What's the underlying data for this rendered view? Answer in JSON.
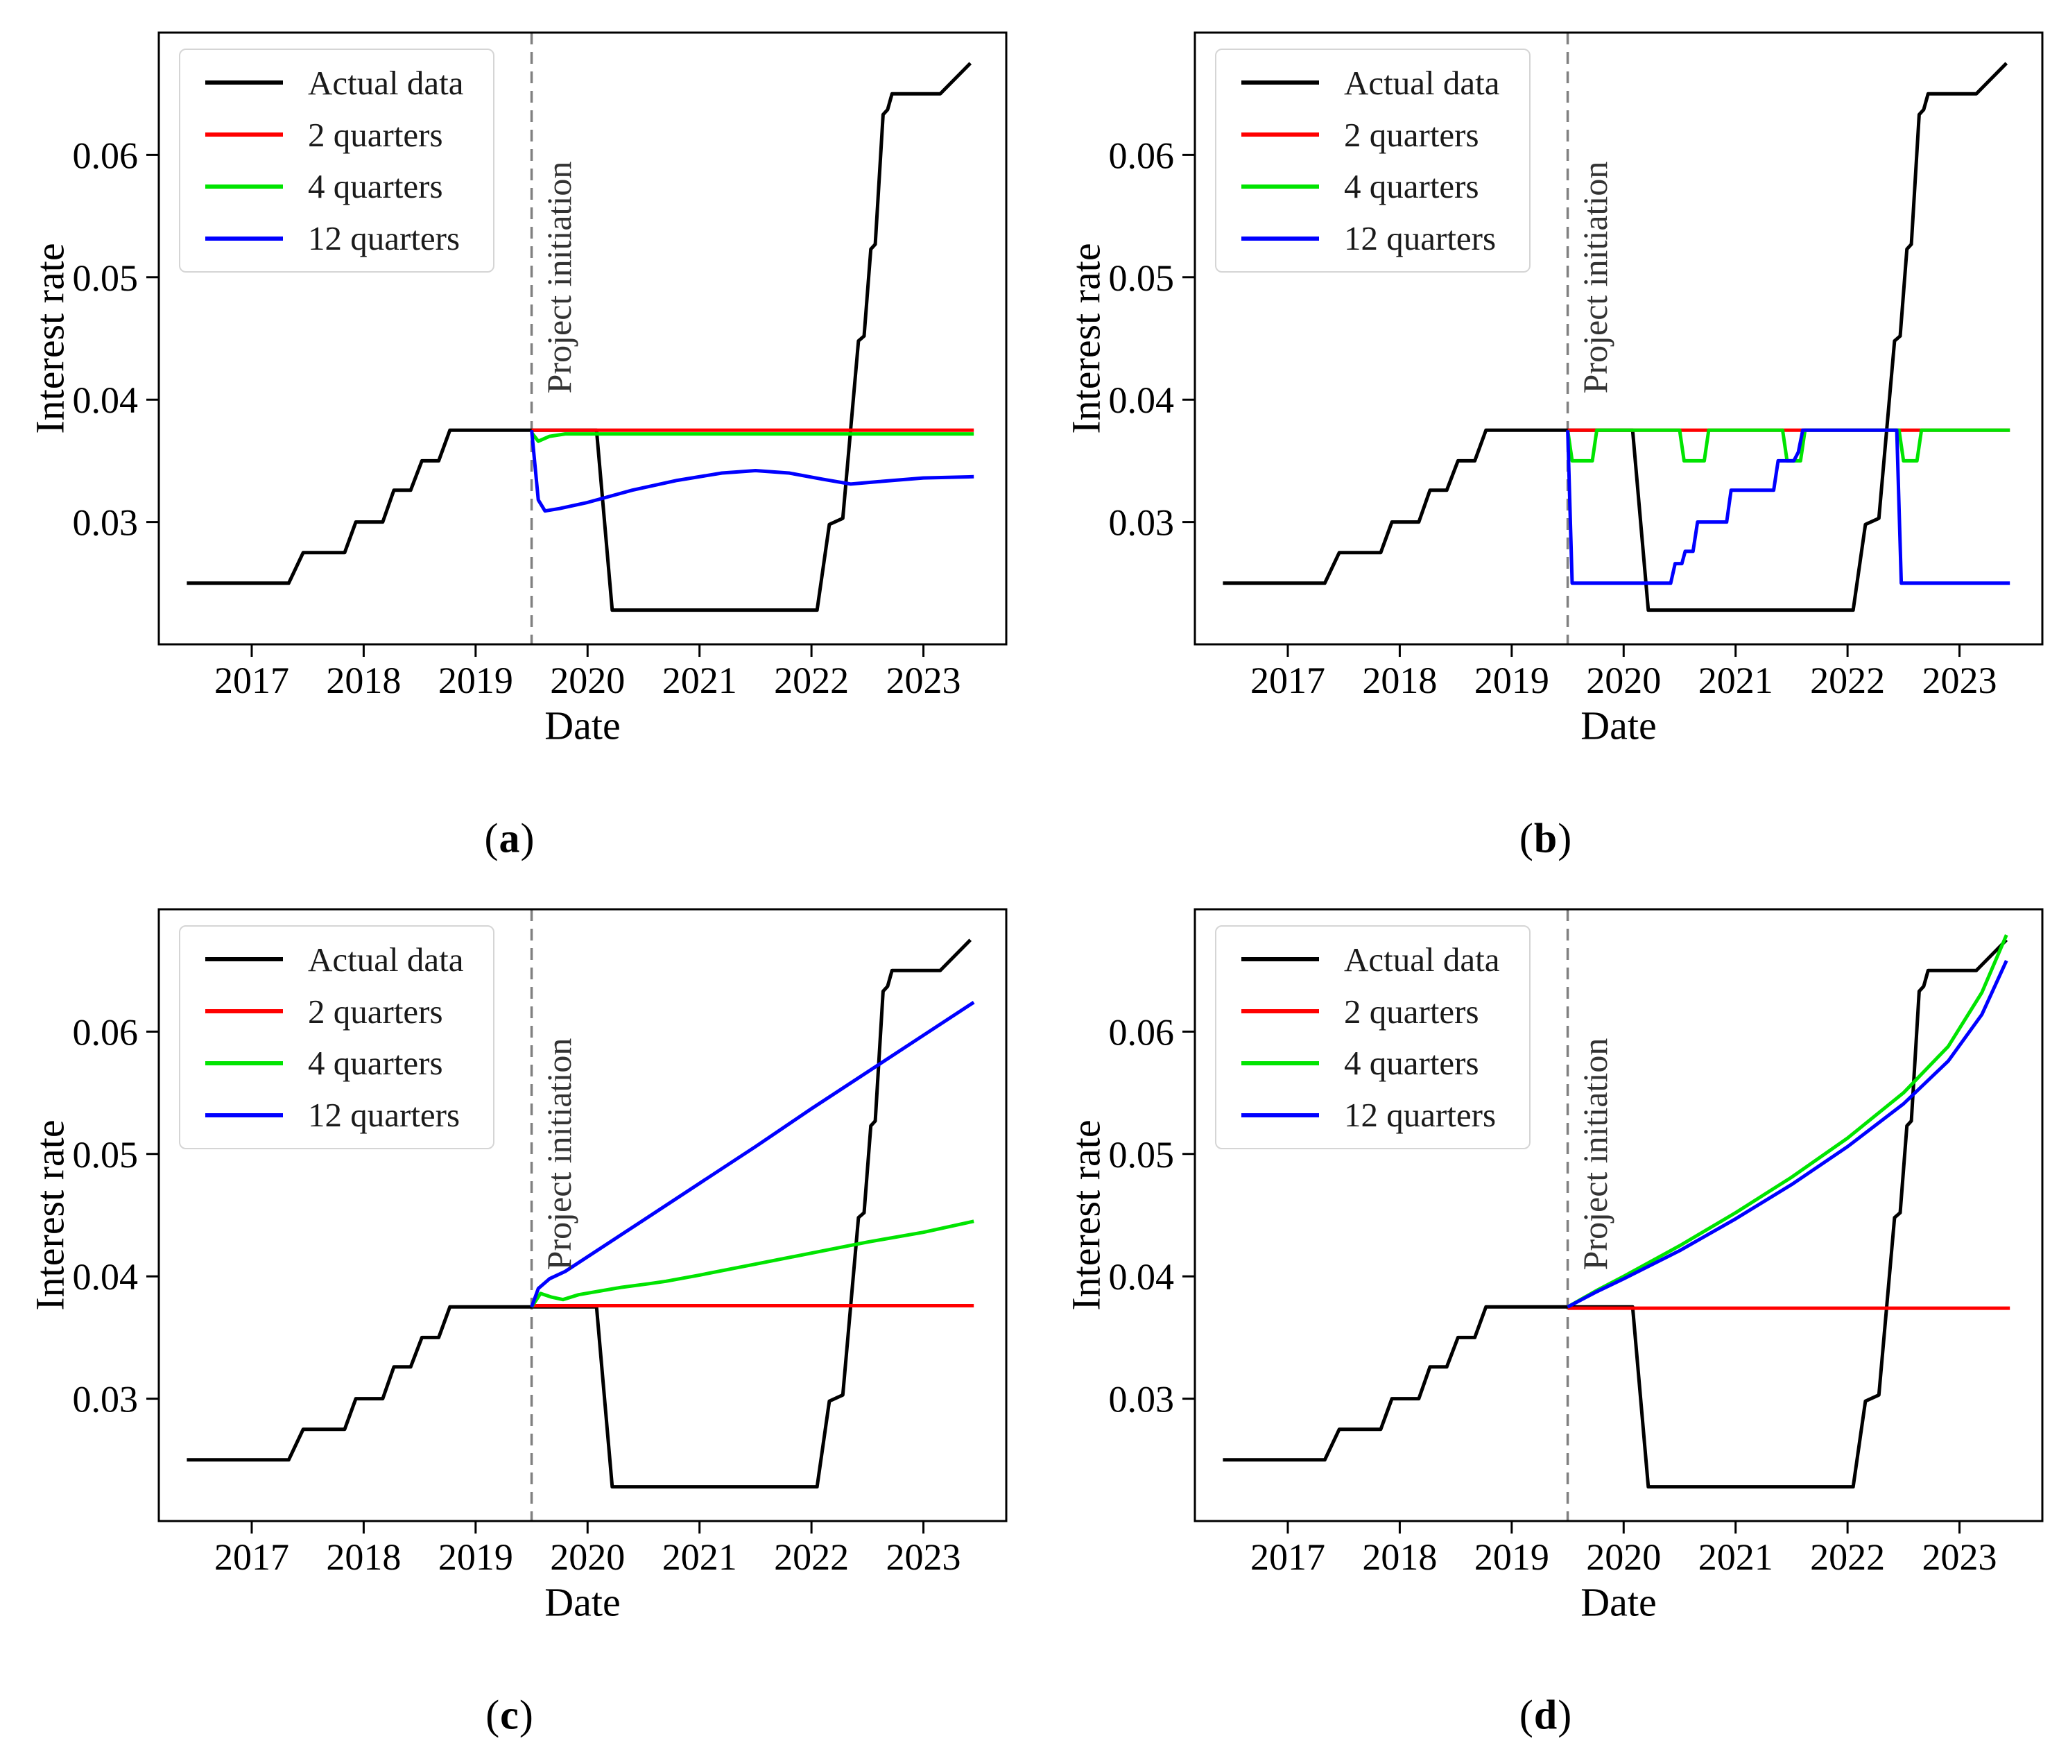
{
  "figure": {
    "ylabel": "Interest rate",
    "xlabel": "Date",
    "legend": [
      "Actual data",
      "2 quarters",
      "4 quarters",
      "12 quarters"
    ],
    "legend_colors": [
      "#000000",
      "#ff0000",
      "#00e400",
      "#0000ff"
    ],
    "annotation": "Project initiation",
    "caption_open": "(",
    "caption_close": ")",
    "captions": [
      "a",
      "b",
      "c",
      "d"
    ],
    "colors": {
      "actual": "#000000",
      "two_quarters": "#ff0000",
      "four_quarters": "#00e400",
      "twelve_quarters": "#0000ff",
      "dashed_line": "#808080",
      "frame": "#000000"
    }
  },
  "shared_series": {
    "actual_data": [
      [
        2016.42,
        0.025
      ],
      [
        2017.33,
        0.025
      ],
      [
        2017.46,
        0.0275
      ],
      [
        2017.83,
        0.0275
      ],
      [
        2017.93,
        0.03
      ],
      [
        2018.17,
        0.03
      ],
      [
        2018.27,
        0.0326
      ],
      [
        2018.42,
        0.0326
      ],
      [
        2018.52,
        0.035
      ],
      [
        2018.67,
        0.035
      ],
      [
        2018.77,
        0.0375
      ],
      [
        2020.08,
        0.0375
      ],
      [
        2020.22,
        0.0228
      ],
      [
        2022.05,
        0.0228
      ],
      [
        2022.16,
        0.0298
      ],
      [
        2022.28,
        0.0303
      ],
      [
        2022.42,
        0.0448
      ],
      [
        2022.47,
        0.0452
      ],
      [
        2022.53,
        0.0523
      ],
      [
        2022.57,
        0.0527
      ],
      [
        2022.64,
        0.0633
      ],
      [
        2022.68,
        0.0637
      ],
      [
        2022.72,
        0.065
      ],
      [
        2023.15,
        0.065
      ],
      [
        2023.42,
        0.0675
      ]
    ]
  },
  "chart_data": [
    {
      "id": "a",
      "type": "line",
      "caption": "a",
      "xlabel": "Date",
      "ylabel": "Interest rate",
      "xlim": [
        2016.17,
        2023.74
      ],
      "ylim": [
        0.02,
        0.07
      ],
      "x_ticks": [
        2017,
        2018,
        2019,
        2020,
        2021,
        2022,
        2023
      ],
      "x_tick_labels": [
        "2017",
        "2018",
        "2019",
        "2020",
        "2021",
        "2022",
        "2023"
      ],
      "y_ticks": [
        0.03,
        0.04,
        0.05,
        0.06
      ],
      "y_tick_labels": [
        "0.03",
        "0.04",
        "0.05",
        "0.06"
      ],
      "annotation_x": 2019.5,
      "annotation_label": "Project initiation",
      "legend_position": "upper-left",
      "grid": false,
      "series": [
        {
          "name": "Actual data",
          "color": "#000000",
          "points": "@actual_data"
        },
        {
          "name": "2 quarters",
          "color": "#ff0000",
          "points": [
            [
              2019.5,
              0.0375
            ],
            [
              2023.45,
              0.0375
            ]
          ]
        },
        {
          "name": "4 quarters",
          "color": "#00e400",
          "points": [
            [
              2019.5,
              0.0373
            ],
            [
              2019.56,
              0.0366
            ],
            [
              2019.66,
              0.037
            ],
            [
              2019.8,
              0.0372
            ],
            [
              2023.45,
              0.0372
            ]
          ]
        },
        {
          "name": "12 quarters",
          "color": "#0000ff",
          "points": [
            [
              2019.5,
              0.0375
            ],
            [
              2019.56,
              0.0318
            ],
            [
              2019.62,
              0.0309
            ],
            [
              2019.75,
              0.0311
            ],
            [
              2020.0,
              0.0316
            ],
            [
              2020.4,
              0.0326
            ],
            [
              2020.8,
              0.0334
            ],
            [
              2021.2,
              0.034
            ],
            [
              2021.5,
              0.0342
            ],
            [
              2021.8,
              0.034
            ],
            [
              2022.1,
              0.0335
            ],
            [
              2022.35,
              0.0331
            ],
            [
              2022.6,
              0.0333
            ],
            [
              2023.0,
              0.0336
            ],
            [
              2023.45,
              0.0337
            ]
          ]
        }
      ]
    },
    {
      "id": "b",
      "type": "line",
      "caption": "b",
      "xlabel": "Date",
      "ylabel": "Interest rate",
      "xlim": [
        2016.17,
        2023.74
      ],
      "ylim": [
        0.02,
        0.07
      ],
      "x_ticks": [
        2017,
        2018,
        2019,
        2020,
        2021,
        2022,
        2023
      ],
      "x_tick_labels": [
        "2017",
        "2018",
        "2019",
        "2020",
        "2021",
        "2022",
        "2023"
      ],
      "y_ticks": [
        0.03,
        0.04,
        0.05,
        0.06
      ],
      "y_tick_labels": [
        "0.03",
        "0.04",
        "0.05",
        "0.06"
      ],
      "annotation_x": 2019.5,
      "annotation_label": "Project initiation",
      "legend_position": "upper-left",
      "grid": false,
      "series": [
        {
          "name": "Actual data",
          "color": "#000000",
          "points": "@actual_data"
        },
        {
          "name": "2 quarters",
          "color": "#ff0000",
          "points": [
            [
              2019.5,
              0.0375
            ],
            [
              2023.45,
              0.0375
            ]
          ]
        },
        {
          "name": "4 quarters",
          "color": "#00e400",
          "points": [
            [
              2019.5,
              0.0375
            ],
            [
              2019.54,
              0.035
            ],
            [
              2019.72,
              0.035
            ],
            [
              2019.76,
              0.0375
            ],
            [
              2020.5,
              0.0375
            ],
            [
              2020.54,
              0.035
            ],
            [
              2020.72,
              0.035
            ],
            [
              2020.76,
              0.0375
            ],
            [
              2021.42,
              0.0375
            ],
            [
              2021.46,
              0.035
            ],
            [
              2021.58,
              0.035
            ],
            [
              2021.62,
              0.0375
            ],
            [
              2022.46,
              0.0375
            ],
            [
              2022.5,
              0.035
            ],
            [
              2022.62,
              0.035
            ],
            [
              2022.66,
              0.0375
            ],
            [
              2023.45,
              0.0375
            ]
          ]
        },
        {
          "name": "12 quarters",
          "color": "#0000ff",
          "points": [
            [
              2019.5,
              0.0375
            ],
            [
              2019.54,
              0.025
            ],
            [
              2020.42,
              0.025
            ],
            [
              2020.46,
              0.0266
            ],
            [
              2020.52,
              0.0266
            ],
            [
              2020.55,
              0.0276
            ],
            [
              2020.62,
              0.0276
            ],
            [
              2020.66,
              0.03
            ],
            [
              2020.92,
              0.03
            ],
            [
              2020.96,
              0.0326
            ],
            [
              2021.34,
              0.0326
            ],
            [
              2021.38,
              0.035
            ],
            [
              2021.52,
              0.035
            ],
            [
              2021.56,
              0.0357
            ],
            [
              2021.6,
              0.0375
            ],
            [
              2022.44,
              0.0375
            ],
            [
              2022.48,
              0.025
            ],
            [
              2023.45,
              0.025
            ]
          ]
        }
      ]
    },
    {
      "id": "c",
      "type": "line",
      "caption": "c",
      "xlabel": "Date",
      "ylabel": "Interest rate",
      "xlim": [
        2016.17,
        2023.74
      ],
      "ylim": [
        0.02,
        0.07
      ],
      "x_ticks": [
        2017,
        2018,
        2019,
        2020,
        2021,
        2022,
        2023
      ],
      "x_tick_labels": [
        "2017",
        "2018",
        "2019",
        "2020",
        "2021",
        "2022",
        "2023"
      ],
      "y_ticks": [
        0.03,
        0.04,
        0.05,
        0.06
      ],
      "y_tick_labels": [
        "0.03",
        "0.04",
        "0.05",
        "0.06"
      ],
      "annotation_x": 2019.5,
      "annotation_label": "Project initiation",
      "legend_position": "upper-left",
      "grid": false,
      "series": [
        {
          "name": "Actual data",
          "color": "#000000",
          "points": "@actual_data"
        },
        {
          "name": "2 quarters",
          "color": "#ff0000",
          "points": [
            [
              2019.5,
              0.0376
            ],
            [
              2023.45,
              0.0376
            ]
          ]
        },
        {
          "name": "4 quarters",
          "color": "#00e400",
          "points": [
            [
              2019.5,
              0.0375
            ],
            [
              2019.58,
              0.0386
            ],
            [
              2019.68,
              0.0383
            ],
            [
              2019.78,
              0.0381
            ],
            [
              2019.92,
              0.0385
            ],
            [
              2020.3,
              0.0391
            ],
            [
              2020.55,
              0.0394
            ],
            [
              2020.7,
              0.0396
            ],
            [
              2021.0,
              0.0401
            ],
            [
              2021.5,
              0.041
            ],
            [
              2022.0,
              0.0419
            ],
            [
              2022.5,
              0.0428
            ],
            [
              2023.0,
              0.0436
            ],
            [
              2023.45,
              0.0445
            ]
          ]
        },
        {
          "name": "12 quarters",
          "color": "#0000ff",
          "points": [
            [
              2019.5,
              0.0375
            ],
            [
              2019.56,
              0.039
            ],
            [
              2019.66,
              0.0398
            ],
            [
              2019.8,
              0.0404
            ],
            [
              2020.5,
              0.0446
            ],
            [
              2021.0,
              0.0476
            ],
            [
              2021.5,
              0.0506
            ],
            [
              2022.0,
              0.0537
            ],
            [
              2022.5,
              0.0567
            ],
            [
              2023.0,
              0.0597
            ],
            [
              2023.45,
              0.0624
            ]
          ]
        }
      ]
    },
    {
      "id": "d",
      "type": "line",
      "caption": "d",
      "xlabel": "Date",
      "ylabel": "Interest rate",
      "xlim": [
        2016.17,
        2023.74
      ],
      "ylim": [
        0.02,
        0.07
      ],
      "x_ticks": [
        2017,
        2018,
        2019,
        2020,
        2021,
        2022,
        2023
      ],
      "x_tick_labels": [
        "2017",
        "2018",
        "2019",
        "2020",
        "2021",
        "2022",
        "2023"
      ],
      "y_ticks": [
        0.03,
        0.04,
        0.05,
        0.06
      ],
      "y_tick_labels": [
        "0.03",
        "0.04",
        "0.05",
        "0.06"
      ],
      "annotation_x": 2019.5,
      "annotation_label": "Project initiation",
      "legend_position": "upper-left",
      "grid": false,
      "series": [
        {
          "name": "Actual data",
          "color": "#000000",
          "points": "@actual_data"
        },
        {
          "name": "2 quarters",
          "color": "#ff0000",
          "points": [
            [
              2019.5,
              0.0374
            ],
            [
              2023.45,
              0.0374
            ]
          ]
        },
        {
          "name": "4 quarters",
          "color": "#00e400",
          "points": [
            [
              2019.5,
              0.0375
            ],
            [
              2019.75,
              0.0388
            ],
            [
              2020.0,
              0.04
            ],
            [
              2020.5,
              0.0425
            ],
            [
              2021.0,
              0.0452
            ],
            [
              2021.5,
              0.0481
            ],
            [
              2022.0,
              0.0513
            ],
            [
              2022.5,
              0.055
            ],
            [
              2022.9,
              0.0588
            ],
            [
              2023.2,
              0.0632
            ],
            [
              2023.42,
              0.0679
            ]
          ]
        },
        {
          "name": "12 quarters",
          "color": "#0000ff",
          "points": [
            [
              2019.5,
              0.0375
            ],
            [
              2019.75,
              0.0387
            ],
            [
              2020.0,
              0.0398
            ],
            [
              2020.5,
              0.0421
            ],
            [
              2021.0,
              0.0447
            ],
            [
              2021.5,
              0.0475
            ],
            [
              2022.0,
              0.0506
            ],
            [
              2022.5,
              0.0541
            ],
            [
              2022.9,
              0.0576
            ],
            [
              2023.2,
              0.0614
            ],
            [
              2023.42,
              0.0658
            ]
          ]
        }
      ]
    }
  ]
}
